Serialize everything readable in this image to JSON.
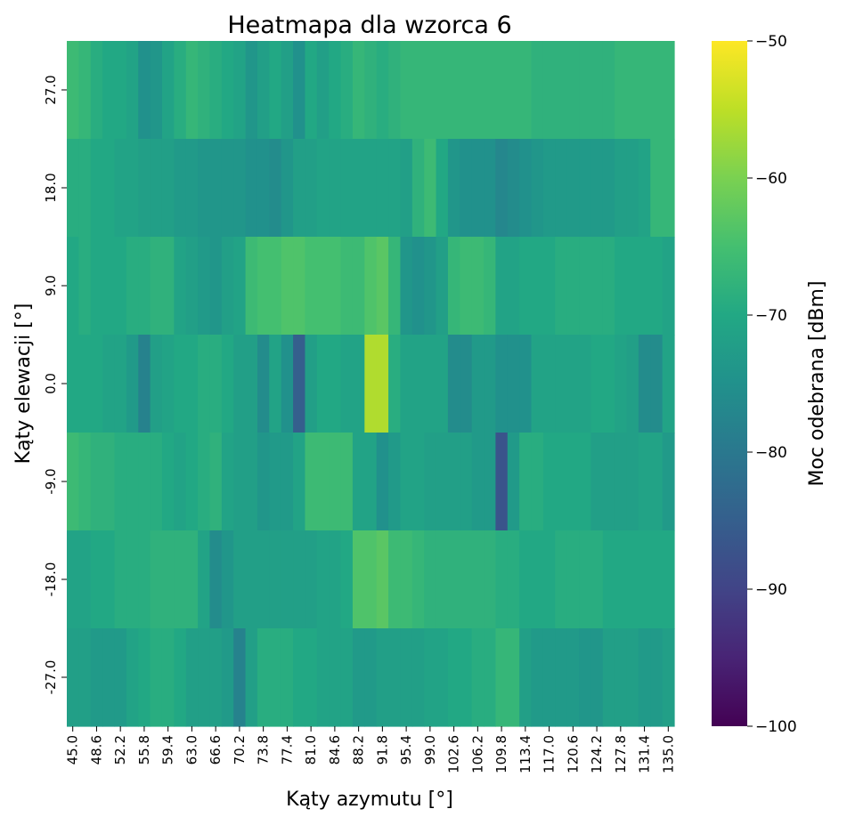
{
  "chart_data": {
    "type": "heatmap",
    "title": "Heatmapa dla wzorca 6",
    "xlabel": "Kąty azymutu [°]",
    "ylabel": "Kąty elewacji [°]",
    "colorbar_label": "Moc odebrana [dBm]",
    "colormap": "viridis",
    "vmin": -100,
    "vmax": -50,
    "colorbar_ticks": [
      -50,
      -60,
      -70,
      -80,
      -90,
      -100
    ],
    "colorbar_tick_labels": [
      "−50",
      "−60",
      "−70",
      "−80",
      "−90",
      "−100"
    ],
    "x_tick_labels": [
      "45.0",
      "48.6",
      "52.2",
      "55.8",
      "59.4",
      "63.0",
      "66.6",
      "70.2",
      "73.8",
      "77.4",
      "81.0",
      "84.6",
      "88.2",
      "91.8",
      "95.4",
      "99.0",
      "102.6",
      "106.2",
      "109.8",
      "113.4",
      "117.0",
      "120.6",
      "124.2",
      "127.8",
      "131.4",
      "135.0"
    ],
    "y_tick_labels": [
      "27.0",
      "18.0",
      "9.0",
      "0.0",
      "-9.0",
      "-18.0",
      "-27.0"
    ],
    "x": [
      45.0,
      46.8,
      48.6,
      50.4,
      52.2,
      54.0,
      55.8,
      57.6,
      59.4,
      61.2,
      63.0,
      64.8,
      66.6,
      68.4,
      70.2,
      72.0,
      73.8,
      75.6,
      77.4,
      79.2,
      81.0,
      82.8,
      84.6,
      86.4,
      88.2,
      90.0,
      91.8,
      93.6,
      95.4,
      97.2,
      99.0,
      100.8,
      102.6,
      104.4,
      106.2,
      108.0,
      109.8,
      111.6,
      113.4,
      115.2,
      117.0,
      118.8,
      120.6,
      122.4,
      124.2,
      126.0,
      127.8,
      129.6,
      131.4,
      133.2,
      135.0
    ],
    "y": [
      27.0,
      18.0,
      9.0,
      0.0,
      -9.0,
      -18.0,
      -27.0
    ],
    "values": [
      [
        -66,
        -67,
        -69,
        -70,
        -70,
        -71,
        -75,
        -74,
        -71,
        -69,
        -67,
        -68,
        -69,
        -70,
        -71,
        -74,
        -72,
        -70,
        -72,
        -75,
        -70,
        -72,
        -70,
        -69,
        -67,
        -68,
        -69,
        -68,
        -67,
        -67,
        -67,
        -67,
        -67,
        -67,
        -67,
        -67,
        -67,
        -67,
        -67,
        -68,
        -68,
        -68,
        -68,
        -68,
        -68,
        -68,
        -67,
        -67,
        -67,
        -67,
        -67
      ],
      [
        -69,
        -69,
        -70,
        -70,
        -71,
        -71,
        -72,
        -72,
        -72,
        -73,
        -73,
        -74,
        -74,
        -74,
        -74,
        -75,
        -75,
        -76,
        -74,
        -72,
        -72,
        -71,
        -71,
        -71,
        -71,
        -71,
        -71,
        -71,
        -72,
        -68,
        -66,
        -70,
        -74,
        -75,
        -75,
        -75,
        -77,
        -76,
        -75,
        -74,
        -73,
        -73,
        -73,
        -73,
        -73,
        -73,
        -72,
        -72,
        -71,
        -67,
        -67
      ],
      [
        -70,
        -69,
        -70,
        -70,
        -70,
        -69,
        -69,
        -68,
        -68,
        -71,
        -72,
        -73,
        -74,
        -72,
        -71,
        -66,
        -65,
        -65,
        -64,
        -64,
        -65,
        -65,
        -65,
        -66,
        -66,
        -64,
        -63,
        -67,
        -74,
        -75,
        -74,
        -72,
        -67,
        -66,
        -66,
        -67,
        -71,
        -71,
        -70,
        -70,
        -70,
        -69,
        -69,
        -69,
        -69,
        -69,
        -70,
        -70,
        -70,
        -70,
        -71
      ],
      [
        -70,
        -70,
        -70,
        -71,
        -71,
        -73,
        -78,
        -72,
        -71,
        -70,
        -70,
        -69,
        -69,
        -70,
        -72,
        -72,
        -76,
        -71,
        -75,
        -85,
        -72,
        -70,
        -70,
        -71,
        -71,
        -56,
        -56,
        -69,
        -71,
        -71,
        -71,
        -71,
        -76,
        -76,
        -73,
        -73,
        -75,
        -75,
        -75,
        -71,
        -71,
        -71,
        -71,
        -71,
        -70,
        -70,
        -71,
        -72,
        -76,
        -76,
        -71
      ],
      [
        -66,
        -67,
        -68,
        -68,
        -69,
        -69,
        -69,
        -69,
        -70,
        -71,
        -70,
        -69,
        -68,
        -71,
        -72,
        -72,
        -74,
        -73,
        -73,
        -71,
        -66,
        -66,
        -66,
        -66,
        -71,
        -71,
        -75,
        -73,
        -71,
        -71,
        -72,
        -72,
        -72,
        -72,
        -73,
        -73,
        -87,
        -73,
        -69,
        -69,
        -70,
        -70,
        -70,
        -70,
        -72,
        -72,
        -72,
        -72,
        -71,
        -71,
        -73
      ],
      [
        -71,
        -71,
        -70,
        -70,
        -69,
        -69,
        -69,
        -68,
        -68,
        -68,
        -68,
        -71,
        -76,
        -74,
        -72,
        -72,
        -72,
        -72,
        -72,
        -72,
        -72,
        -71,
        -71,
        -70,
        -64,
        -64,
        -63,
        -66,
        -66,
        -67,
        -68,
        -68,
        -68,
        -68,
        -68,
        -68,
        -69,
        -69,
        -70,
        -70,
        -70,
        -69,
        -69,
        -69,
        -69,
        -70,
        -70,
        -70,
        -70,
        -70,
        -70
      ],
      [
        -72,
        -72,
        -73,
        -73,
        -73,
        -71,
        -70,
        -69,
        -69,
        -70,
        -72,
        -72,
        -72,
        -73,
        -78,
        -72,
        -69,
        -69,
        -69,
        -70,
        -70,
        -71,
        -71,
        -71,
        -73,
        -73,
        -72,
        -72,
        -72,
        -72,
        -71,
        -71,
        -70,
        -70,
        -69,
        -69,
        -67,
        -67,
        -72,
        -73,
        -73,
        -73,
        -73,
        -74,
        -74,
        -72,
        -72,
        -72,
        -73,
        -73,
        -72
      ]
    ]
  }
}
